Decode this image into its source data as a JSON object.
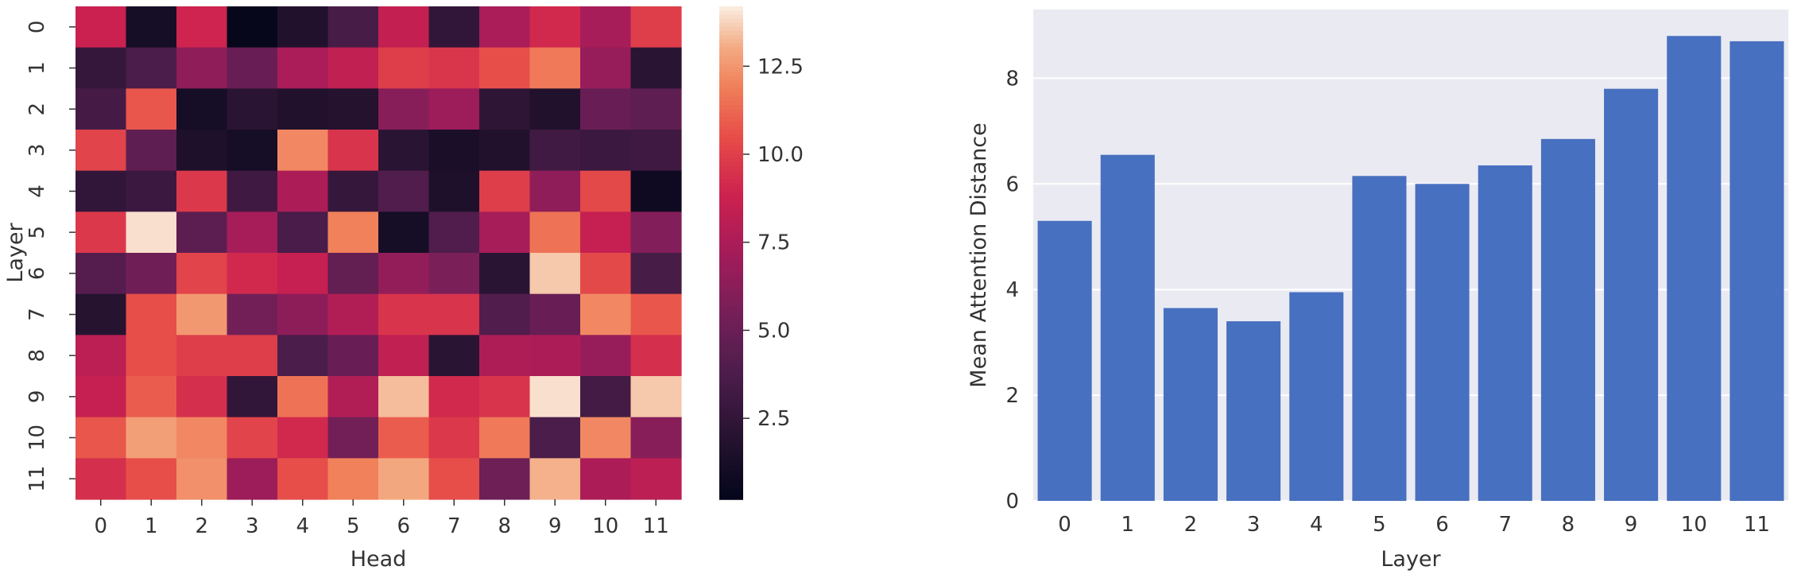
{
  "chart_data": [
    {
      "type": "heatmap",
      "xlabel": "Head",
      "ylabel": "Layer",
      "x_categories": [
        "0",
        "1",
        "2",
        "3",
        "4",
        "5",
        "6",
        "7",
        "8",
        "9",
        "10",
        "11"
      ],
      "y_categories": [
        "0",
        "1",
        "2",
        "3",
        "4",
        "5",
        "6",
        "7",
        "8",
        "9",
        "10",
        "11"
      ],
      "colorbar": {
        "ticks": [
          "2.5",
          "5.0",
          "7.5",
          "10.0",
          "12.5"
        ],
        "vmin": 0.2,
        "vmax": 14.2,
        "colormap": "rocket"
      },
      "values": [
        [
          8.8,
          1.2,
          9.0,
          0.4,
          1.8,
          3.6,
          8.5,
          2.6,
          7.5,
          9.2,
          7.4,
          10.0
        ],
        [
          2.8,
          3.8,
          6.5,
          5.0,
          7.5,
          8.4,
          10.0,
          9.7,
          10.6,
          11.8,
          6.8,
          2.2
        ],
        [
          3.5,
          10.8,
          1.2,
          2.2,
          1.8,
          1.9,
          6.2,
          7.0,
          2.4,
          1.8,
          5.0,
          4.6
        ],
        [
          10.2,
          4.6,
          1.6,
          1.2,
          12.2,
          9.6,
          2.2,
          1.4,
          1.8,
          3.3,
          3.0,
          3.2
        ],
        [
          2.6,
          3.0,
          9.8,
          3.2,
          7.6,
          2.8,
          4.0,
          1.6,
          10.0,
          6.5,
          10.4,
          0.8
        ],
        [
          9.8,
          14.0,
          4.5,
          7.4,
          3.7,
          12.0,
          1.2,
          4.0,
          7.4,
          11.6,
          8.6,
          6.0
        ],
        [
          4.2,
          5.3,
          10.2,
          9.2,
          8.6,
          4.8,
          6.6,
          5.7,
          2.2,
          13.6,
          10.4,
          3.6
        ],
        [
          2.0,
          10.6,
          12.6,
          5.4,
          6.4,
          7.8,
          9.6,
          9.6,
          4.0,
          5.0,
          12.2,
          10.8
        ],
        [
          8.2,
          10.6,
          10.0,
          10.0,
          3.8,
          5.0,
          8.4,
          2.2,
          7.7,
          7.6,
          6.8,
          9.4
        ],
        [
          8.6,
          11.0,
          9.4,
          2.6,
          11.6,
          7.8,
          13.4,
          9.2,
          9.6,
          14.0,
          3.4,
          13.6
        ],
        [
          10.8,
          12.8,
          12.2,
          10.2,
          9.2,
          5.4,
          11.0,
          9.8,
          11.8,
          3.8,
          12.2,
          6.2
        ],
        [
          9.4,
          10.6,
          12.4,
          7.0,
          10.6,
          12.0,
          13.0,
          10.6,
          5.2,
          13.2,
          7.6,
          8.2
        ]
      ]
    },
    {
      "type": "bar",
      "xlabel": "Layer",
      "ylabel": "Mean Attention Distance",
      "categories": [
        "0",
        "1",
        "2",
        "3",
        "4",
        "5",
        "6",
        "7",
        "8",
        "9",
        "10",
        "11"
      ],
      "values": [
        5.3,
        6.55,
        3.65,
        3.4,
        3.95,
        6.15,
        6.0,
        6.35,
        6.85,
        7.8,
        8.8,
        8.7
      ],
      "ylim": [
        0,
        9.3
      ],
      "yticks": [
        "0",
        "2",
        "4",
        "6",
        "8"
      ],
      "grid": true,
      "color": "#4870c0",
      "background": "#eaeaf2"
    }
  ]
}
